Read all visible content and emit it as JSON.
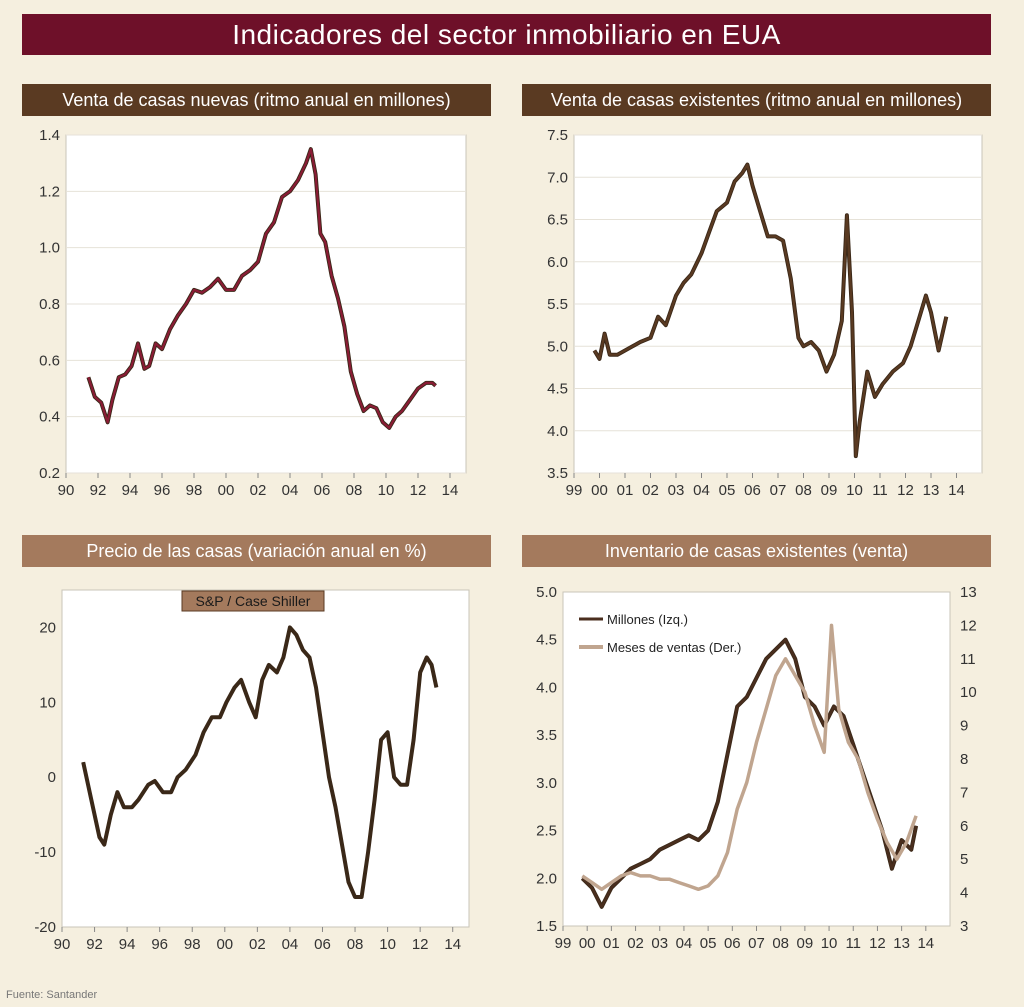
{
  "title": "Indicadores del sector inmobiliario en EUA",
  "source": "Fuente: Santander",
  "colors": {
    "title_bg": "#6e1029",
    "dark_header": "#5a3a22",
    "light_header": "#a47a5d",
    "background": "#f5efdf"
  },
  "chart_data": [
    {
      "id": "new",
      "type": "line",
      "title": "Venta de casas nuevas (ritmo anual en millones)",
      "ylim": [
        0.2,
        1.4
      ],
      "yticks": [
        0.2,
        0.4,
        0.6,
        0.8,
        1.0,
        1.2,
        1.4
      ],
      "ytick_labels": [
        "0.2",
        "0.4",
        "0.6",
        "0.8",
        "1.0",
        "1.2",
        "1.4"
      ],
      "xlim": [
        1990,
        2015
      ],
      "xticks": [
        1990,
        1992,
        1994,
        1996,
        1998,
        2000,
        2002,
        2004,
        2006,
        2008,
        2010,
        2012,
        2014
      ],
      "xtick_labels": [
        "90",
        "92",
        "94",
        "96",
        "98",
        "00",
        "02",
        "04",
        "06",
        "08",
        "10",
        "12",
        "14"
      ],
      "grid": true,
      "series": [
        {
          "color": "#8a1c35",
          "x": [
            1991.4,
            1991.8,
            1992.2,
            1992.6,
            1992.9,
            1993.3,
            1993.7,
            1994.1,
            1994.5,
            1994.9,
            1995.2,
            1995.6,
            1996.0,
            1996.5,
            1997.0,
            1997.5,
            1998.0,
            1998.5,
            1999.0,
            1999.5,
            2000.0,
            2000.5,
            2001.0,
            2001.5,
            2002.0,
            2002.5,
            2003.0,
            2003.5,
            2004.0,
            2004.5,
            2005.0,
            2005.3,
            2005.6,
            2005.9,
            2006.2,
            2006.6,
            2007.0,
            2007.4,
            2007.8,
            2008.2,
            2008.6,
            2009.0,
            2009.4,
            2009.8,
            2010.2,
            2010.6,
            2011.0,
            2011.5,
            2012.0,
            2012.5,
            2012.9,
            2013.1
          ],
          "y": [
            0.54,
            0.47,
            0.45,
            0.38,
            0.46,
            0.54,
            0.55,
            0.58,
            0.66,
            0.57,
            0.58,
            0.66,
            0.64,
            0.71,
            0.76,
            0.8,
            0.85,
            0.84,
            0.86,
            0.89,
            0.85,
            0.85,
            0.9,
            0.92,
            0.95,
            1.05,
            1.09,
            1.18,
            1.2,
            1.24,
            1.3,
            1.35,
            1.26,
            1.05,
            1.02,
            0.9,
            0.82,
            0.72,
            0.56,
            0.48,
            0.42,
            0.44,
            0.43,
            0.38,
            0.36,
            0.4,
            0.42,
            0.46,
            0.5,
            0.52,
            0.52,
            0.51
          ]
        }
      ]
    },
    {
      "id": "existing",
      "type": "line",
      "title": "Venta de casas existentes (ritmo anual en millones)",
      "ylim": [
        3.5,
        7.5
      ],
      "yticks": [
        3.5,
        4.0,
        4.5,
        5.0,
        5.5,
        6.0,
        6.5,
        7.0,
        7.5
      ],
      "ytick_labels": [
        "3.5",
        "4.0",
        "4.5",
        "5.0",
        "5.5",
        "6.0",
        "6.5",
        "7.0",
        "7.5"
      ],
      "xlim": [
        1999,
        2015
      ],
      "xticks": [
        1999,
        2000,
        2001,
        2002,
        2003,
        2004,
        2005,
        2006,
        2007,
        2008,
        2009,
        2010,
        2011,
        2012,
        2013,
        2014
      ],
      "xtick_labels": [
        "99",
        "00",
        "01",
        "02",
        "03",
        "04",
        "05",
        "06",
        "07",
        "08",
        "09",
        "10",
        "11",
        "12",
        "13",
        "14"
      ],
      "grid": true,
      "series": [
        {
          "color": "#5a3a22",
          "x": [
            1999.8,
            2000.0,
            2000.2,
            2000.4,
            2000.7,
            2001.0,
            2001.3,
            2001.6,
            2002.0,
            2002.3,
            2002.6,
            2003.0,
            2003.3,
            2003.6,
            2004.0,
            2004.3,
            2004.6,
            2005.0,
            2005.3,
            2005.6,
            2005.8,
            2006.0,
            2006.3,
            2006.6,
            2006.9,
            2007.2,
            2007.5,
            2007.8,
            2008.0,
            2008.3,
            2008.6,
            2008.9,
            2009.2,
            2009.5,
            2009.7,
            2009.9,
            2010.05,
            2010.2,
            2010.5,
            2010.8,
            2011.1,
            2011.5,
            2011.9,
            2012.2,
            2012.5,
            2012.8,
            2013.0,
            2013.3,
            2013.6
          ],
          "y": [
            4.95,
            4.85,
            5.15,
            4.9,
            4.9,
            4.95,
            5.0,
            5.05,
            5.1,
            5.35,
            5.25,
            5.6,
            5.75,
            5.85,
            6.1,
            6.35,
            6.6,
            6.7,
            6.95,
            7.05,
            7.15,
            6.9,
            6.6,
            6.3,
            6.3,
            6.25,
            5.8,
            5.1,
            5.0,
            5.05,
            4.95,
            4.7,
            4.9,
            5.3,
            6.55,
            5.4,
            3.7,
            4.1,
            4.7,
            4.4,
            4.55,
            4.7,
            4.8,
            5.0,
            5.3,
            5.6,
            5.4,
            4.95,
            5.35
          ]
        }
      ]
    },
    {
      "id": "price",
      "type": "line",
      "title": "Precio de las casas (variación anual en %)",
      "annotation": "S&P / Case Shiller",
      "ylim": [
        -20,
        25
      ],
      "yticks": [
        -20,
        -10,
        0,
        10,
        20
      ],
      "ytick_labels": [
        "-20",
        "-10",
        "0",
        "10",
        "20"
      ],
      "xlim": [
        1990,
        2015
      ],
      "xticks": [
        1990,
        1992,
        1994,
        1996,
        1998,
        2000,
        2002,
        2004,
        2006,
        2008,
        2010,
        2012,
        2014
      ],
      "xtick_labels": [
        "90",
        "92",
        "94",
        "96",
        "98",
        "00",
        "02",
        "04",
        "06",
        "08",
        "10",
        "12",
        "14"
      ],
      "grid": false,
      "series": [
        {
          "color": "#3a2818",
          "x": [
            1991.3,
            1991.8,
            1992.3,
            1992.6,
            1993.0,
            1993.4,
            1993.8,
            1994.3,
            1994.7,
            1995.3,
            1995.7,
            1996.2,
            1996.7,
            1997.1,
            1997.6,
            1998.2,
            1998.7,
            1999.2,
            1999.7,
            2000.1,
            2000.6,
            2001.0,
            2001.5,
            2001.9,
            2002.3,
            2002.7,
            2003.2,
            2003.6,
            2004.0,
            2004.4,
            2004.8,
            2005.2,
            2005.6,
            2006.0,
            2006.4,
            2006.8,
            2007.2,
            2007.6,
            2008.0,
            2008.4,
            2008.8,
            2009.2,
            2009.6,
            2010.0,
            2010.4,
            2010.8,
            2011.2,
            2011.6,
            2012.0,
            2012.4,
            2012.7,
            2013.0
          ],
          "y": [
            2,
            -3,
            -8,
            -9,
            -5,
            -2,
            -4,
            -4,
            -3,
            -1,
            -0.5,
            -2,
            -2,
            0,
            1,
            3,
            6,
            8,
            8,
            10,
            12,
            13,
            10,
            8,
            13,
            15,
            14,
            16,
            20,
            19,
            17,
            16,
            12,
            6,
            0,
            -4,
            -9,
            -14,
            -16,
            -16,
            -10,
            -3,
            5,
            6,
            0,
            -1,
            -1,
            5,
            14,
            16,
            15,
            12
          ]
        }
      ]
    },
    {
      "id": "inventory",
      "type": "line",
      "title": "Inventario de casas existentes (venta)",
      "ylim": [
        1.5,
        5.0
      ],
      "yticks": [
        1.5,
        2.0,
        2.5,
        3.0,
        3.5,
        4.0,
        4.5,
        5.0
      ],
      "ytick_labels": [
        "1.5",
        "2.0",
        "2.5",
        "3.0",
        "3.5",
        "4.0",
        "4.5",
        "5.0"
      ],
      "y2lim": [
        3,
        13
      ],
      "y2ticks": [
        3,
        4,
        5,
        6,
        7,
        8,
        9,
        10,
        11,
        12,
        13
      ],
      "y2tick_labels": [
        "3",
        "4",
        "5",
        "6",
        "7",
        "8",
        "9",
        "10",
        "11",
        "12",
        "13"
      ],
      "xlim": [
        1999,
        2015
      ],
      "xticks": [
        1999,
        2000,
        2001,
        2002,
        2003,
        2004,
        2005,
        2006,
        2007,
        2008,
        2009,
        2010,
        2011,
        2012,
        2013,
        2014
      ],
      "xtick_labels": [
        "99",
        "00",
        "01",
        "02",
        "03",
        "04",
        "05",
        "06",
        "07",
        "08",
        "09",
        "10",
        "11",
        "12",
        "13",
        "14"
      ],
      "grid": false,
      "legend": "top-left",
      "series": [
        {
          "name": "Millones (Izq.)",
          "color": "#4a2e1e",
          "axis": "left",
          "x": [
            1999.8,
            2000.2,
            2000.6,
            2001.0,
            2001.4,
            2001.8,
            2002.2,
            2002.6,
            2003.0,
            2003.4,
            2003.8,
            2004.2,
            2004.6,
            2005.0,
            2005.4,
            2005.8,
            2006.2,
            2006.6,
            2007.0,
            2007.4,
            2007.8,
            2008.2,
            2008.6,
            2009.0,
            2009.4,
            2009.8,
            2010.2,
            2010.6,
            2011.0,
            2011.4,
            2011.8,
            2012.2,
            2012.6,
            2013.0,
            2013.4,
            2013.6
          ],
          "y": [
            2.0,
            1.9,
            1.7,
            1.9,
            2.0,
            2.1,
            2.15,
            2.2,
            2.3,
            2.35,
            2.4,
            2.45,
            2.4,
            2.5,
            2.8,
            3.3,
            3.8,
            3.9,
            4.1,
            4.3,
            4.4,
            4.5,
            4.3,
            3.9,
            3.8,
            3.6,
            3.8,
            3.7,
            3.4,
            3.1,
            2.8,
            2.5,
            2.1,
            2.4,
            2.3,
            2.55
          ]
        },
        {
          "name": "Meses de ventas (Der.)",
          "color": "#c0a58f",
          "axis": "right",
          "x": [
            1999.8,
            2000.2,
            2000.6,
            2001.0,
            2001.4,
            2001.8,
            2002.2,
            2002.6,
            2003.0,
            2003.4,
            2003.8,
            2004.2,
            2004.6,
            2005.0,
            2005.4,
            2005.8,
            2006.2,
            2006.6,
            2007.0,
            2007.4,
            2007.8,
            2008.2,
            2008.6,
            2009.0,
            2009.4,
            2009.8,
            2010.1,
            2010.4,
            2010.8,
            2011.2,
            2011.6,
            2012.0,
            2012.4,
            2012.8,
            2013.2,
            2013.6
          ],
          "y": [
            4.5,
            4.3,
            4.1,
            4.3,
            4.5,
            4.6,
            4.5,
            4.5,
            4.4,
            4.4,
            4.3,
            4.2,
            4.1,
            4.2,
            4.5,
            5.2,
            6.5,
            7.3,
            8.5,
            9.5,
            10.5,
            11.0,
            10.5,
            10.0,
            9.0,
            8.2,
            12.0,
            9.5,
            8.5,
            8.0,
            7.0,
            6.2,
            5.5,
            5.0,
            5.5,
            6.3
          ]
        }
      ]
    }
  ]
}
